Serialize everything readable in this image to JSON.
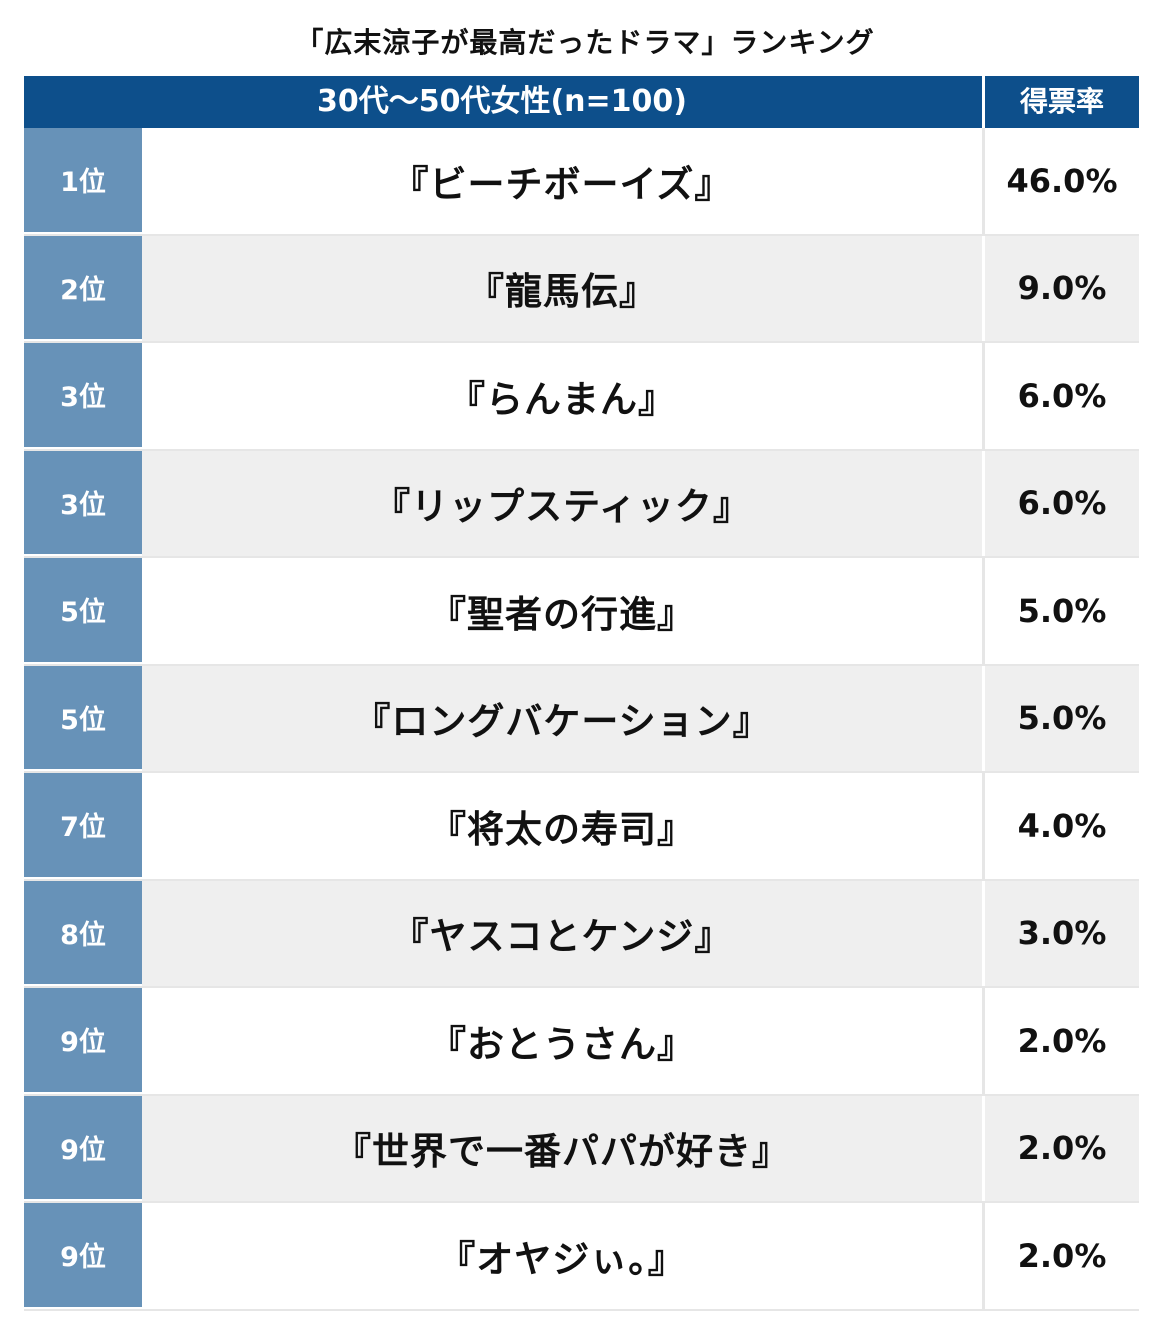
{
  "title": "「広末涼子が最高だったドラマ」ランキング",
  "header": {
    "group_label": "30代〜50代女性(n=100)",
    "column_label": "得票率"
  },
  "rows": [
    {
      "rank": "1位",
      "drama": "『ビーチボーイズ』",
      "percent": "46.0%"
    },
    {
      "rank": "2位",
      "drama": "『龍馬伝』",
      "percent": "9.0%"
    },
    {
      "rank": "3位",
      "drama": "『らんまん』",
      "percent": "6.0%"
    },
    {
      "rank": "3位",
      "drama": "『リップスティック』",
      "percent": "6.0%"
    },
    {
      "rank": "5位",
      "drama": "『聖者の行進』",
      "percent": "5.0%"
    },
    {
      "rank": "5位",
      "drama": "『ロングバケーション』",
      "percent": "5.0%"
    },
    {
      "rank": "7位",
      "drama": "『将太の寿司』",
      "percent": "4.0%"
    },
    {
      "rank": "8位",
      "drama": "『ヤスコとケンジ』",
      "percent": "3.0%"
    },
    {
      "rank": "9位",
      "drama": "『おとうさん』",
      "percent": "2.0%"
    },
    {
      "rank": "9位",
      "drama": "『世界で一番パパが好き』",
      "percent": "2.0%"
    },
    {
      "rank": "9位",
      "drama": "『オヤジぃ。』",
      "percent": "2.0%"
    }
  ],
  "colors": {
    "header_bg": "#0d4f8b",
    "rank_bg": "#6792b8",
    "stripe_bg": "#efefef"
  }
}
